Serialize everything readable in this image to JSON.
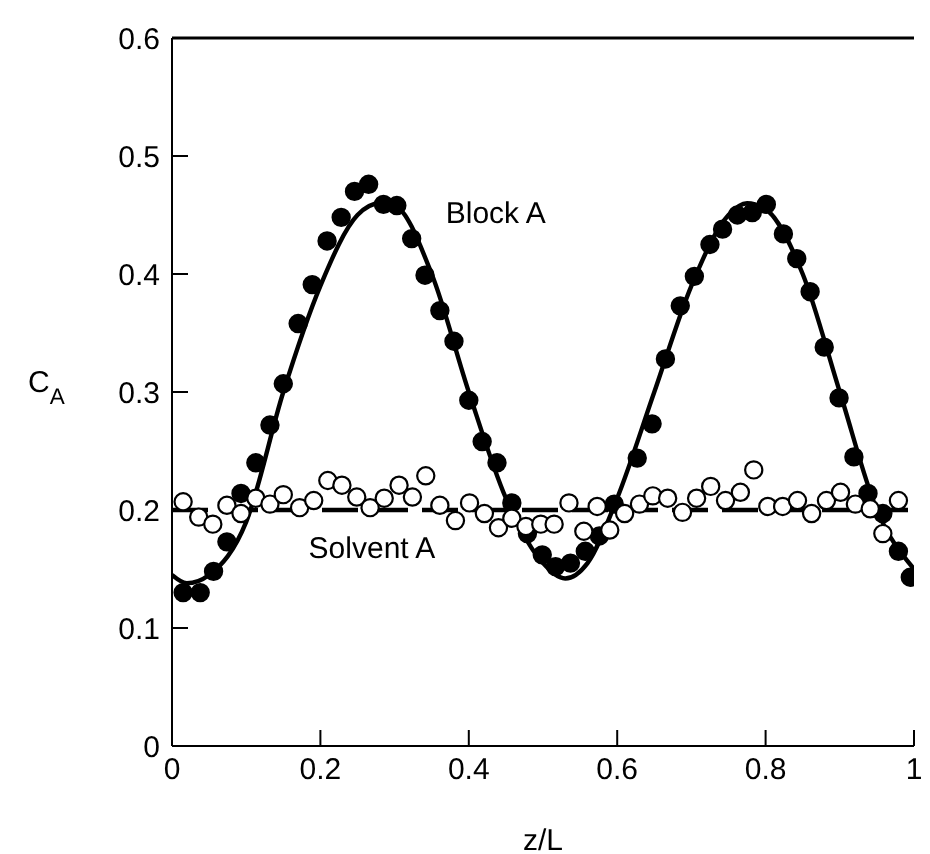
{
  "chart_data": {
    "type": "scatter",
    "xlabel": "z/L",
    "ylabel": "C$_{A}$",
    "xlim": [
      0,
      1
    ],
    "xticks": [
      0,
      0.2,
      0.4,
      0.6,
      0.8,
      1
    ],
    "ylim": [
      0,
      0.6
    ],
    "yticks": [
      0,
      0.1,
      0.2,
      0.3,
      0.4,
      0.5,
      0.6
    ],
    "grid": false,
    "legend": false,
    "series": [
      {
        "marker": "circle",
        "color": "#000000",
        "x": [
          0.015,
          0.038,
          0.056,
          0.074,
          0.093,
          0.113,
          0.132,
          0.15,
          0.17,
          0.189,
          0.209,
          0.228,
          0.246,
          0.265,
          0.285,
          0.303,
          0.323,
          0.341,
          0.361,
          0.38,
          0.4,
          0.418,
          0.438,
          0.458,
          0.479,
          0.499,
          0.517,
          0.537,
          0.557,
          0.576,
          0.596,
          0.627,
          0.647,
          0.665,
          0.685,
          0.704,
          0.725,
          0.742,
          0.762,
          0.782,
          0.801,
          0.824,
          0.842,
          0.86,
          0.879,
          0.899,
          0.919,
          0.938,
          0.958,
          0.979,
          0.995
        ],
        "values": [
          0.13,
          0.13,
          0.148,
          0.173,
          0.214,
          0.24,
          0.272,
          0.307,
          0.358,
          0.391,
          0.428,
          0.448,
          0.47,
          0.476,
          0.459,
          0.458,
          0.43,
          0.399,
          0.369,
          0.343,
          0.293,
          0.258,
          0.24,
          0.206,
          0.18,
          0.162,
          0.152,
          0.155,
          0.165,
          0.178,
          0.205,
          0.244,
          0.273,
          0.328,
          0.373,
          0.398,
          0.425,
          0.438,
          0.45,
          0.452,
          0.459,
          0.434,
          0.413,
          0.385,
          0.338,
          0.295,
          0.245,
          0.214,
          0.197,
          0.165,
          0.143
        ]
      },
      {
        "marker": "circle",
        "color": "#ffffff",
        "x": [
          0.015,
          0.036,
          0.055,
          0.074,
          0.093,
          0.113,
          0.132,
          0.15,
          0.172,
          0.191,
          0.21,
          0.229,
          0.249,
          0.267,
          0.286,
          0.306,
          0.324,
          0.342,
          0.361,
          0.382,
          0.401,
          0.421,
          0.44,
          0.458,
          0.477,
          0.497,
          0.515,
          0.535,
          0.555,
          0.573,
          0.59,
          0.61,
          0.63,
          0.648,
          0.668,
          0.688,
          0.707,
          0.726,
          0.746,
          0.766,
          0.784,
          0.803,
          0.823,
          0.843,
          0.862,
          0.882,
          0.901,
          0.921,
          0.941,
          0.958,
          0.979
        ],
        "values": [
          0.207,
          0.194,
          0.188,
          0.204,
          0.197,
          0.21,
          0.205,
          0.213,
          0.202,
          0.208,
          0.225,
          0.221,
          0.211,
          0.202,
          0.21,
          0.221,
          0.211,
          0.229,
          0.204,
          0.191,
          0.206,
          0.197,
          0.185,
          0.193,
          0.186,
          0.188,
          0.188,
          0.206,
          0.182,
          0.203,
          0.183,
          0.197,
          0.205,
          0.212,
          0.21,
          0.198,
          0.21,
          0.22,
          0.208,
          0.215,
          0.234,
          0.203,
          0.203,
          0.208,
          0.197,
          0.208,
          0.215,
          0.205,
          0.201,
          0.18,
          0.208
        ]
      },
      {
        "type": "line",
        "name": "Block A",
        "marker": "none",
        "line_style": "solid",
        "color": "#000000",
        "x": [
          0,
          0.02,
          0.05,
          0.1,
          0.15,
          0.2,
          0.25,
          0.28,
          0.3,
          0.35,
          0.4,
          0.45,
          0.5,
          0.53,
          0.56,
          0.6,
          0.65,
          0.7,
          0.75,
          0.775,
          0.8,
          0.85,
          0.9,
          0.95,
          1
        ],
        "values": [
          0.145,
          0.138,
          0.145,
          0.19,
          0.3,
          0.39,
          0.45,
          0.46,
          0.458,
          0.4,
          0.3,
          0.21,
          0.155,
          0.142,
          0.155,
          0.21,
          0.3,
          0.39,
          0.45,
          0.46,
          0.455,
          0.4,
          0.3,
          0.2,
          0.15
        ]
      },
      {
        "type": "line",
        "name": "Solvent A",
        "marker": "none",
        "line_style": "dashed",
        "color": "#000000",
        "x": [
          0,
          1
        ],
        "values": [
          0.2,
          0.2
        ]
      }
    ]
  }
}
